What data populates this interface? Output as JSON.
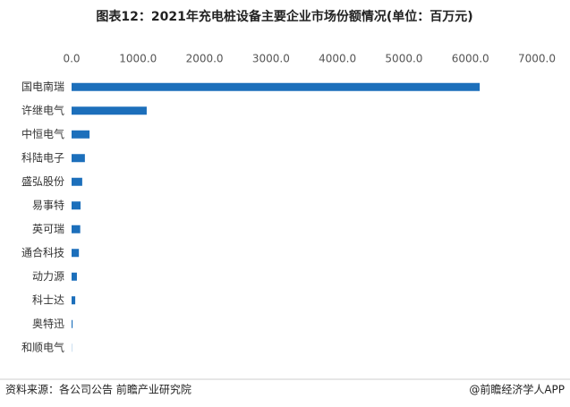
{
  "chart_data": {
    "type": "barh",
    "title": "图表12：2021年充电桩设备主要企业市场份额情况(单位：百万元)",
    "categories": [
      "国电南瑞",
      "许继电气",
      "中恒电气",
      "科陆电子",
      "盛弘股份",
      "易事特",
      "英可瑞",
      "通合科技",
      "动力源",
      "科士达",
      "奥特迅",
      "和顺电气"
    ],
    "values": [
      6140,
      1130,
      270,
      200,
      160,
      135,
      130,
      110,
      80,
      55,
      15,
      3
    ],
    "color": "#1c6fbb",
    "xlim": [
      0,
      7000
    ],
    "xticks": [
      {
        "value": 0,
        "label": "0.0"
      },
      {
        "value": 1000,
        "label": "1000.0"
      },
      {
        "value": 2000,
        "label": "2000.0"
      },
      {
        "value": 3000,
        "label": "3000.0"
      },
      {
        "value": 4000,
        "label": "4000.0"
      },
      {
        "value": 5000,
        "label": "5000.0"
      },
      {
        "value": 6000,
        "label": "6000.0"
      },
      {
        "value": 7000,
        "label": "7000.0"
      }
    ],
    "source": "资料来源：各公司公告 前瞻产业研究院",
    "credit": "@前瞻经济学人APP"
  }
}
